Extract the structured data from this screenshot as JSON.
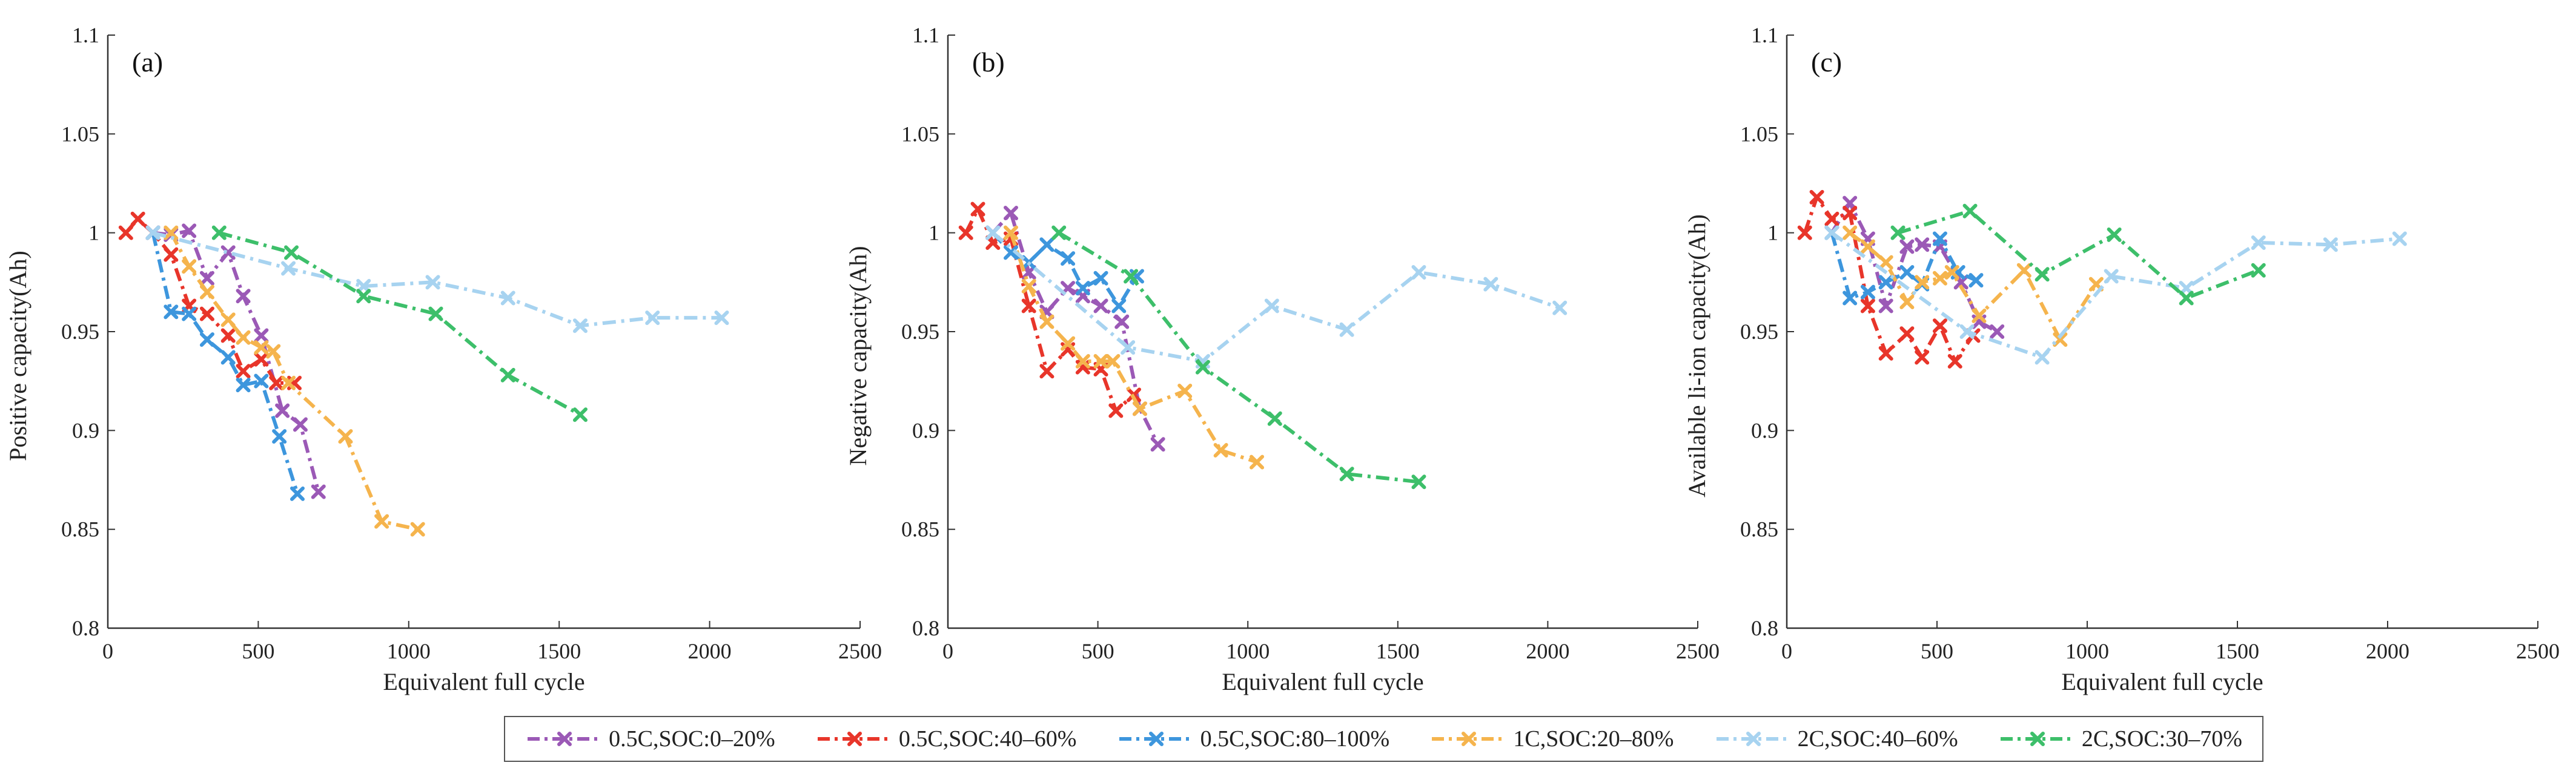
{
  "figure": {
    "legend": [
      {
        "name": "0.5C,SOC:0–20%",
        "color": "#9b59b6"
      },
      {
        "name": "0.5C,SOC:40–60%",
        "color": "#e8352a"
      },
      {
        "name": "0.5C,SOC:80–100%",
        "color": "#3d96dd"
      },
      {
        "name": "1C,SOC:20–80%",
        "color": "#f5b44d"
      },
      {
        "name": "2C,SOC:40–60%",
        "color": "#a7d3f0"
      },
      {
        "name": "2C,SOC:30–70%",
        "color": "#3dbf6a"
      }
    ]
  },
  "chart_data": [
    {
      "type": "line",
      "panel_label": "(a)",
      "xlabel": "Equivalent full cycle",
      "ylabel": "Positive capacity(Ah)",
      "xlim": [
        0,
        2500
      ],
      "ylim": [
        0.8,
        1.1
      ],
      "xticks": [
        0,
        500,
        1000,
        1500,
        2000,
        2500
      ],
      "yticks": [
        0.8,
        0.85,
        0.9,
        0.95,
        1,
        1.05,
        1.1
      ],
      "ytick_labels": [
        "0.8",
        "0.85",
        "0.9",
        "0.95",
        "1",
        "1.05",
        "1.1"
      ],
      "series": [
        {
          "name": "0.5C,SOC:0–20%",
          "color": "#9b59b6",
          "x": [
            150,
            210,
            270,
            330,
            400,
            450,
            510,
            580,
            640,
            700
          ],
          "y": [
            1.0,
            0.999,
            1.001,
            0.977,
            0.99,
            0.968,
            0.948,
            0.91,
            0.903,
            0.869
          ]
        },
        {
          "name": "0.5C,SOC:40–60%",
          "color": "#e8352a",
          "x": [
            60,
            100,
            150,
            210,
            270,
            330,
            400,
            450,
            510,
            560,
            620
          ],
          "y": [
            1.0,
            1.007,
            1.0,
            0.989,
            0.963,
            0.959,
            0.948,
            0.93,
            0.936,
            0.924,
            0.924
          ]
        },
        {
          "name": "0.5C,SOC:80–100%",
          "color": "#3d96dd",
          "x": [
            150,
            210,
            270,
            330,
            400,
            450,
            510,
            570,
            630
          ],
          "y": [
            1.0,
            0.96,
            0.959,
            0.946,
            0.937,
            0.923,
            0.925,
            0.897,
            0.868
          ]
        },
        {
          "name": "1C,SOC:20–80%",
          "color": "#f5b44d",
          "x": [
            210,
            270,
            330,
            400,
            450,
            510,
            550,
            600,
            790,
            910,
            1030
          ],
          "y": [
            1.0,
            0.983,
            0.97,
            0.956,
            0.947,
            0.942,
            0.94,
            0.924,
            0.897,
            0.854,
            0.85
          ]
        },
        {
          "name": "2C,SOC:40–60%",
          "color": "#a7d3f0",
          "x": [
            150,
            600,
            850,
            1080,
            1330,
            1570,
            1810,
            2040
          ],
          "y": [
            1.0,
            0.982,
            0.973,
            0.975,
            0.967,
            0.953,
            0.957,
            0.957
          ]
        },
        {
          "name": "2C,SOC:30–70%",
          "color": "#3dbf6a",
          "x": [
            370,
            610,
            850,
            1090,
            1330,
            1570
          ],
          "y": [
            1.0,
            0.99,
            0.968,
            0.959,
            0.928,
            0.908
          ]
        }
      ]
    },
    {
      "type": "line",
      "panel_label": "(b)",
      "xlabel": "Equivalent full cycle",
      "ylabel": "Negative capacity(Ah)",
      "xlim": [
        0,
        2500
      ],
      "ylim": [
        0.8,
        1.1
      ],
      "xticks": [
        0,
        500,
        1000,
        1500,
        2000,
        2500
      ],
      "yticks": [
        0.8,
        0.85,
        0.9,
        0.95,
        1,
        1.05,
        1.1
      ],
      "ytick_labels": [
        "0.8",
        "0.85",
        "0.9",
        "0.95",
        "1",
        "1.05",
        "1.1"
      ],
      "series": [
        {
          "name": "0.5C,SOC:0–20%",
          "color": "#9b59b6",
          "x": [
            150,
            210,
            270,
            330,
            400,
            450,
            510,
            580,
            640,
            700
          ],
          "y": [
            1.0,
            1.01,
            0.98,
            0.96,
            0.972,
            0.968,
            0.963,
            0.955,
            0.911,
            0.893
          ]
        },
        {
          "name": "0.5C,SOC:40–60%",
          "color": "#e8352a",
          "x": [
            60,
            100,
            150,
            210,
            270,
            330,
            400,
            450,
            510,
            560,
            620
          ],
          "y": [
            1.0,
            1.012,
            0.995,
            0.997,
            0.963,
            0.93,
            0.941,
            0.932,
            0.931,
            0.91,
            0.918
          ]
        },
        {
          "name": "0.5C,SOC:80–100%",
          "color": "#3d96dd",
          "x": [
            150,
            210,
            270,
            330,
            400,
            450,
            510,
            570,
            630
          ],
          "y": [
            1.0,
            0.99,
            0.985,
            0.994,
            0.987,
            0.972,
            0.977,
            0.963,
            0.978
          ]
        },
        {
          "name": "1C,SOC:20–80%",
          "color": "#f5b44d",
          "x": [
            210,
            270,
            330,
            400,
            450,
            510,
            550,
            640,
            790,
            910,
            1030
          ],
          "y": [
            1.0,
            0.973,
            0.955,
            0.944,
            0.935,
            0.935,
            0.935,
            0.911,
            0.92,
            0.89,
            0.884
          ]
        },
        {
          "name": "2C,SOC:40–60%",
          "color": "#a7d3f0",
          "x": [
            150,
            600,
            850,
            1080,
            1330,
            1570,
            1810,
            2040
          ],
          "y": [
            1.0,
            0.942,
            0.935,
            0.963,
            0.951,
            0.98,
            0.974,
            0.962
          ]
        },
        {
          "name": "2C,SOC:30–70%",
          "color": "#3dbf6a",
          "x": [
            370,
            610,
            850,
            1090,
            1330,
            1570
          ],
          "y": [
            1.0,
            0.978,
            0.932,
            0.906,
            0.878,
            0.874
          ]
        }
      ]
    },
    {
      "type": "line",
      "panel_label": "(c)",
      "xlabel": "Equivalent full cycle",
      "ylabel": "Available li-ion capacity(Ah)",
      "xlim": [
        0,
        2500
      ],
      "ylim": [
        0.8,
        1.1
      ],
      "xticks": [
        0,
        500,
        1000,
        1500,
        2000,
        2500
      ],
      "yticks": [
        0.8,
        0.85,
        0.9,
        0.95,
        1,
        1.05,
        1.1
      ],
      "ytick_labels": [
        "0.8",
        "0.85",
        "0.9",
        "0.95",
        "1",
        "1.05",
        "1.1"
      ],
      "series": [
        {
          "name": "0.5C,SOC:0–20%",
          "color": "#9b59b6",
          "x": [
            150,
            210,
            270,
            330,
            400,
            450,
            510,
            580,
            640,
            700
          ],
          "y": [
            1.0,
            1.015,
            0.997,
            0.963,
            0.993,
            0.994,
            0.993,
            0.975,
            0.955,
            0.95
          ]
        },
        {
          "name": "0.5C,SOC:40–60%",
          "color": "#e8352a",
          "x": [
            60,
            100,
            150,
            210,
            270,
            330,
            400,
            450,
            510,
            560,
            620
          ],
          "y": [
            1.0,
            1.018,
            1.007,
            1.01,
            0.963,
            0.939,
            0.949,
            0.937,
            0.953,
            0.935,
            0.948
          ]
        },
        {
          "name": "0.5C,SOC:80–100%",
          "color": "#3d96dd",
          "x": [
            150,
            210,
            270,
            330,
            400,
            450,
            510,
            570,
            630
          ],
          "y": [
            1.0,
            0.967,
            0.97,
            0.975,
            0.98,
            0.974,
            0.997,
            0.98,
            0.976
          ]
        },
        {
          "name": "1C,SOC:20–80%",
          "color": "#f5b44d",
          "x": [
            210,
            270,
            330,
            400,
            450,
            510,
            550,
            640,
            790,
            910,
            1030
          ],
          "y": [
            1.0,
            0.993,
            0.985,
            0.965,
            0.975,
            0.977,
            0.98,
            0.958,
            0.981,
            0.946,
            0.974
          ]
        },
        {
          "name": "2C,SOC:40–60%",
          "color": "#a7d3f0",
          "x": [
            150,
            600,
            850,
            1080,
            1330,
            1570,
            1810,
            2040
          ],
          "y": [
            1.0,
            0.95,
            0.937,
            0.978,
            0.972,
            0.995,
            0.994,
            0.997
          ]
        },
        {
          "name": "2C,SOC:30–70%",
          "color": "#3dbf6a",
          "x": [
            370,
            610,
            850,
            1090,
            1330,
            1570
          ],
          "y": [
            1.0,
            1.011,
            0.979,
            0.999,
            0.967,
            0.981
          ]
        }
      ]
    }
  ]
}
